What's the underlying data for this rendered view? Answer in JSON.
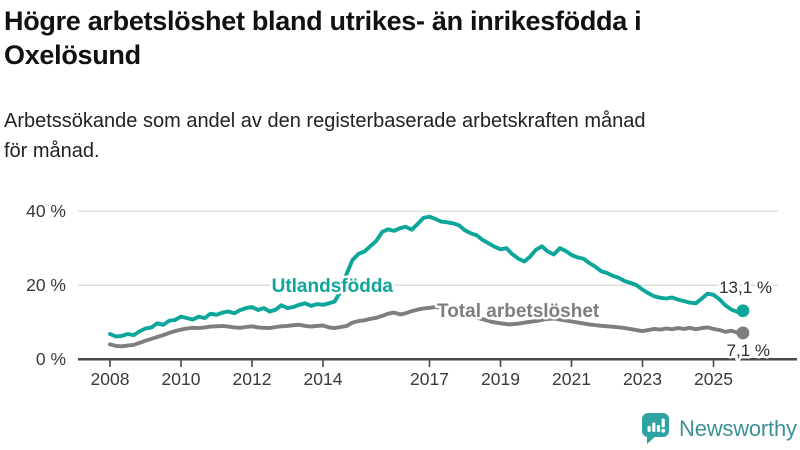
{
  "header": {
    "title_lines": [
      "Högre arbetslöshet bland utrikes- än inrikesfödda i",
      "Oxelösund"
    ],
    "subtitle_lines": [
      "Arbetssökande som andel av den registerbaserade arbetskraften månad",
      "för månad."
    ]
  },
  "chart_data": {
    "type": "line",
    "title": "Högre arbetslöshet bland utrikes- än inrikesfödda i Oxelösund",
    "subtitle": "Arbetssökande som andel av den registerbaserade arbetskraften månad för månad.",
    "xlabel": "",
    "ylabel": "",
    "x_unit": "decimal_year",
    "xlim": [
      2007.8,
      2026.1
    ],
    "ylim": [
      0,
      43
    ],
    "grid": "horizontal",
    "legend_position": "inline-labels",
    "y_ticks": [
      {
        "value": 0,
        "label": "0 %"
      },
      {
        "value": 20,
        "label": "20 %"
      },
      {
        "value": 40,
        "label": "40 %"
      }
    ],
    "x_ticks": [
      {
        "value": 2008,
        "label": "2008"
      },
      {
        "value": 2010,
        "label": "2010"
      },
      {
        "value": 2012,
        "label": "2012"
      },
      {
        "value": 2014,
        "label": "2014"
      },
      {
        "value": 2017,
        "label": "2017"
      },
      {
        "value": 2019,
        "label": "2019"
      },
      {
        "value": 2021,
        "label": "2021"
      },
      {
        "value": 2023,
        "label": "2023"
      },
      {
        "value": 2025,
        "label": "2025"
      }
    ],
    "series": [
      {
        "name": "Total arbetslöshet",
        "color": "#7E7E7E",
        "end_label": "7,1 %",
        "end_value": 7.1,
        "points": [
          [
            2008.0,
            4.0
          ],
          [
            2008.17,
            3.6
          ],
          [
            2008.33,
            3.5
          ],
          [
            2008.5,
            3.7
          ],
          [
            2008.67,
            3.9
          ],
          [
            2008.83,
            4.4
          ],
          [
            2009.0,
            5.0
          ],
          [
            2009.17,
            5.5
          ],
          [
            2009.33,
            6.0
          ],
          [
            2009.5,
            6.5
          ],
          [
            2009.67,
            7.1
          ],
          [
            2009.83,
            7.6
          ],
          [
            2010.0,
            8.0
          ],
          [
            2010.17,
            8.3
          ],
          [
            2010.33,
            8.5
          ],
          [
            2010.5,
            8.4
          ],
          [
            2010.67,
            8.6
          ],
          [
            2010.83,
            8.8
          ],
          [
            2011.0,
            8.9
          ],
          [
            2011.17,
            9.0
          ],
          [
            2011.33,
            8.8
          ],
          [
            2011.5,
            8.6
          ],
          [
            2011.67,
            8.5
          ],
          [
            2011.83,
            8.7
          ],
          [
            2012.0,
            8.9
          ],
          [
            2012.17,
            8.6
          ],
          [
            2012.33,
            8.5
          ],
          [
            2012.5,
            8.4
          ],
          [
            2012.67,
            8.7
          ],
          [
            2012.83,
            8.9
          ],
          [
            2013.0,
            9.0
          ],
          [
            2013.17,
            9.2
          ],
          [
            2013.33,
            9.3
          ],
          [
            2013.5,
            9.0
          ],
          [
            2013.67,
            8.8
          ],
          [
            2013.83,
            9.0
          ],
          [
            2014.0,
            9.1
          ],
          [
            2014.17,
            8.6
          ],
          [
            2014.33,
            8.4
          ],
          [
            2014.5,
            8.7
          ],
          [
            2014.67,
            9.0
          ],
          [
            2014.83,
            9.9
          ],
          [
            2015.0,
            10.3
          ],
          [
            2015.17,
            10.5
          ],
          [
            2015.33,
            10.9
          ],
          [
            2015.5,
            11.2
          ],
          [
            2015.67,
            11.7
          ],
          [
            2015.83,
            12.3
          ],
          [
            2016.0,
            12.6
          ],
          [
            2016.17,
            12.1
          ],
          [
            2016.33,
            12.4
          ],
          [
            2016.5,
            13.0
          ],
          [
            2016.67,
            13.4
          ],
          [
            2016.83,
            13.7
          ],
          [
            2017.0,
            13.9
          ],
          [
            2017.17,
            14.1
          ],
          [
            2017.33,
            13.8
          ],
          [
            2017.5,
            13.4
          ],
          [
            2017.67,
            13.0
          ],
          [
            2017.83,
            12.5
          ],
          [
            2018.0,
            12.0
          ],
          [
            2018.25,
            11.4
          ],
          [
            2018.5,
            10.8
          ],
          [
            2018.75,
            10.1
          ],
          [
            2019.0,
            9.7
          ],
          [
            2019.25,
            9.4
          ],
          [
            2019.5,
            9.6
          ],
          [
            2019.75,
            10.0
          ],
          [
            2020.0,
            10.3
          ],
          [
            2020.25,
            10.8
          ],
          [
            2020.5,
            11.0
          ],
          [
            2020.75,
            10.6
          ],
          [
            2021.0,
            10.2
          ],
          [
            2021.25,
            9.8
          ],
          [
            2021.5,
            9.4
          ],
          [
            2021.75,
            9.1
          ],
          [
            2022.0,
            8.9
          ],
          [
            2022.25,
            8.7
          ],
          [
            2022.5,
            8.4
          ],
          [
            2022.75,
            8.0
          ],
          [
            2023.0,
            7.6
          ],
          [
            2023.17,
            7.9
          ],
          [
            2023.33,
            8.2
          ],
          [
            2023.5,
            8.0
          ],
          [
            2023.67,
            8.3
          ],
          [
            2023.83,
            8.1
          ],
          [
            2024.0,
            8.4
          ],
          [
            2024.17,
            8.2
          ],
          [
            2024.33,
            8.5
          ],
          [
            2024.5,
            8.1
          ],
          [
            2024.67,
            8.4
          ],
          [
            2024.83,
            8.6
          ],
          [
            2025.0,
            8.2
          ],
          [
            2025.17,
            7.9
          ],
          [
            2025.33,
            7.4
          ],
          [
            2025.5,
            7.7
          ],
          [
            2025.67,
            7.2
          ],
          [
            2025.83,
            7.1
          ]
        ]
      },
      {
        "name": "Utlandsfödda",
        "color": "#0CA69B",
        "end_label": "13,1 %",
        "end_value": 13.1,
        "points": [
          [
            2008.0,
            6.8
          ],
          [
            2008.17,
            6.1
          ],
          [
            2008.33,
            6.3
          ],
          [
            2008.5,
            6.8
          ],
          [
            2008.67,
            6.5
          ],
          [
            2008.83,
            7.5
          ],
          [
            2009.0,
            8.3
          ],
          [
            2009.17,
            8.6
          ],
          [
            2009.33,
            9.7
          ],
          [
            2009.5,
            9.3
          ],
          [
            2009.67,
            10.4
          ],
          [
            2009.83,
            10.6
          ],
          [
            2010.0,
            11.5
          ],
          [
            2010.17,
            11.1
          ],
          [
            2010.33,
            10.7
          ],
          [
            2010.5,
            11.5
          ],
          [
            2010.67,
            11.1
          ],
          [
            2010.83,
            12.3
          ],
          [
            2011.0,
            12.0
          ],
          [
            2011.17,
            12.6
          ],
          [
            2011.33,
            12.9
          ],
          [
            2011.5,
            12.4
          ],
          [
            2011.67,
            13.3
          ],
          [
            2011.83,
            13.8
          ],
          [
            2012.0,
            14.1
          ],
          [
            2012.17,
            13.3
          ],
          [
            2012.33,
            13.8
          ],
          [
            2012.5,
            12.9
          ],
          [
            2012.67,
            13.4
          ],
          [
            2012.83,
            14.6
          ],
          [
            2013.0,
            13.8
          ],
          [
            2013.17,
            14.1
          ],
          [
            2013.33,
            14.7
          ],
          [
            2013.5,
            15.1
          ],
          [
            2013.67,
            14.4
          ],
          [
            2013.83,
            14.9
          ],
          [
            2014.0,
            14.7
          ],
          [
            2014.17,
            15.1
          ],
          [
            2014.33,
            15.6
          ],
          [
            2014.5,
            18.5
          ],
          [
            2014.67,
            23.2
          ],
          [
            2014.83,
            26.8
          ],
          [
            2015.0,
            28.5
          ],
          [
            2015.17,
            29.1
          ],
          [
            2015.33,
            30.5
          ],
          [
            2015.5,
            32.0
          ],
          [
            2015.67,
            34.4
          ],
          [
            2015.83,
            35.1
          ],
          [
            2016.0,
            34.7
          ],
          [
            2016.17,
            35.4
          ],
          [
            2016.33,
            35.8
          ],
          [
            2016.5,
            35.0
          ],
          [
            2016.67,
            36.6
          ],
          [
            2016.83,
            38.2
          ],
          [
            2017.0,
            38.5
          ],
          [
            2017.17,
            37.9
          ],
          [
            2017.33,
            37.2
          ],
          [
            2017.5,
            37.0
          ],
          [
            2017.67,
            36.7
          ],
          [
            2017.83,
            36.2
          ],
          [
            2018.0,
            34.8
          ],
          [
            2018.17,
            34.0
          ],
          [
            2018.33,
            33.5
          ],
          [
            2018.5,
            32.2
          ],
          [
            2018.67,
            31.3
          ],
          [
            2018.83,
            30.4
          ],
          [
            2019.0,
            29.7
          ],
          [
            2019.17,
            30.0
          ],
          [
            2019.33,
            28.4
          ],
          [
            2019.5,
            27.2
          ],
          [
            2019.67,
            26.4
          ],
          [
            2019.83,
            27.7
          ],
          [
            2020.0,
            29.6
          ],
          [
            2020.17,
            30.5
          ],
          [
            2020.33,
            29.1
          ],
          [
            2020.5,
            28.3
          ],
          [
            2020.67,
            30.0
          ],
          [
            2020.83,
            29.3
          ],
          [
            2021.0,
            28.2
          ],
          [
            2021.17,
            27.5
          ],
          [
            2021.33,
            27.2
          ],
          [
            2021.5,
            26.0
          ],
          [
            2021.67,
            25.0
          ],
          [
            2021.83,
            23.8
          ],
          [
            2022.0,
            23.3
          ],
          [
            2022.17,
            22.5
          ],
          [
            2022.33,
            22.0
          ],
          [
            2022.5,
            21.1
          ],
          [
            2022.67,
            20.6
          ],
          [
            2022.83,
            20.0
          ],
          [
            2023.0,
            18.8
          ],
          [
            2023.17,
            17.8
          ],
          [
            2023.33,
            17.0
          ],
          [
            2023.5,
            16.6
          ],
          [
            2023.67,
            16.4
          ],
          [
            2023.83,
            16.7
          ],
          [
            2024.0,
            16.1
          ],
          [
            2024.17,
            15.7
          ],
          [
            2024.33,
            15.3
          ],
          [
            2024.5,
            15.1
          ],
          [
            2024.67,
            16.4
          ],
          [
            2024.83,
            17.7
          ],
          [
            2025.0,
            17.4
          ],
          [
            2025.17,
            16.2
          ],
          [
            2025.33,
            14.6
          ],
          [
            2025.5,
            13.4
          ],
          [
            2025.67,
            12.8
          ],
          [
            2025.83,
            13.1
          ]
        ]
      }
    ]
  },
  "branding": {
    "wordmark": "Newsworthy",
    "icon": "newsworthy-bar-chart-bubble-icon",
    "icon_color": "#2EA3A2",
    "wordmark_color": "#3D9096"
  },
  "colors": {
    "accent_teal": "#0CA69B",
    "series_gray": "#7E7E7E",
    "gridline": "#DBDBDB",
    "axis": "#4A4A4A",
    "tick_text": "#3A3A3A",
    "annotation_text": "#2D2D2D"
  }
}
